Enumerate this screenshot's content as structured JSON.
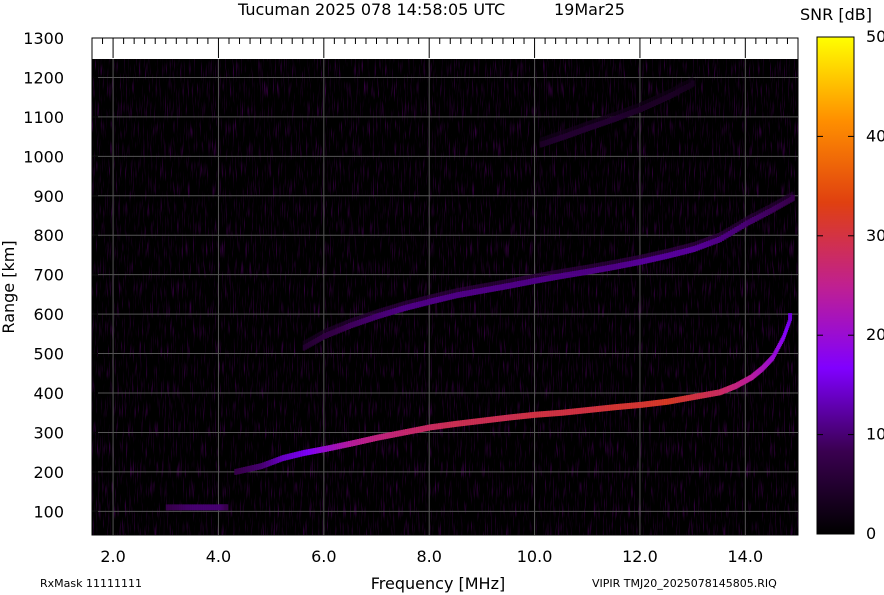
{
  "header": {
    "title": "Tucuman 2025 078 14:58:05 UTC",
    "date": "19Mar25"
  },
  "footer": {
    "rxmask": "RxMask 11111111",
    "filename": "VIPIR  TMJ20_2025078145805.RIQ"
  },
  "colorbar": {
    "label": "SNR [dB]",
    "min": 0,
    "max": 50,
    "ticks": [
      "0",
      "10",
      "20",
      "30",
      "40",
      "50"
    ],
    "colors": [
      "#000000",
      "#3a0050",
      "#8000ff",
      "#c02090",
      "#e04010",
      "#ff9000",
      "#ffff00"
    ]
  },
  "chart_data": {
    "type": "heatmap",
    "title": "Tucuman 2025 078 14:58:05 UTC",
    "xlabel": "Frequency [MHz]",
    "ylabel": "Range [km]",
    "xlim": [
      1.6,
      15.0
    ],
    "ylim": [
      40,
      1300
    ],
    "x_ticks": [
      "2.0",
      "4.0",
      "6.0",
      "8.0",
      "10.0",
      "12.0",
      "14.0"
    ],
    "y_ticks": [
      "100",
      "200",
      "300",
      "400",
      "500",
      "600",
      "700",
      "800",
      "900",
      "1000",
      "1100",
      "1200",
      "1300"
    ],
    "grid": true,
    "colorbar_label": "SNR [dB]",
    "series": [
      {
        "trace": "first-hop E layer",
        "x": [
          3.0,
          3.5,
          4.0,
          4.15
        ],
        "y": [
          110,
          110,
          110,
          110
        ],
        "snr": [
          8,
          10,
          10,
          8
        ]
      },
      {
        "trace": "first-hop F layer",
        "x": [
          4.3,
          4.8,
          5.2,
          5.6,
          6.0,
          6.5,
          7.0,
          7.5,
          8.0,
          8.5,
          9.0,
          9.5,
          10.0,
          10.5,
          11.0,
          11.5,
          12.0,
          12.5,
          13.0,
          13.5,
          13.8,
          14.1,
          14.3,
          14.5,
          14.7,
          14.85
        ],
        "y": [
          200,
          215,
          235,
          248,
          258,
          272,
          287,
          300,
          313,
          322,
          330,
          338,
          345,
          350,
          357,
          364,
          370,
          378,
          390,
          402,
          418,
          440,
          462,
          490,
          540,
          595
        ],
        "snr": [
          8,
          10,
          14,
          16,
          20,
          24,
          26,
          27,
          28,
          29,
          29,
          29,
          30,
          30,
          30,
          31,
          31,
          32,
          30,
          28,
          26,
          24,
          22,
          20,
          18,
          15
        ]
      },
      {
        "trace": "second-hop F layer",
        "x": [
          5.6,
          6.0,
          6.5,
          7.0,
          7.5,
          8.0,
          8.5,
          9.0,
          9.5,
          10.0,
          10.5,
          11.0,
          11.5,
          12.0,
          12.5,
          13.0,
          13.5,
          14.0,
          14.5,
          14.9
        ],
        "y": [
          515,
          545,
          572,
          595,
          615,
          632,
          648,
          660,
          672,
          685,
          697,
          708,
          720,
          733,
          748,
          765,
          790,
          830,
          865,
          895
        ],
        "snr": [
          5,
          7,
          9,
          10,
          11,
          11,
          11,
          11,
          11,
          11,
          11,
          11,
          11,
          12,
          12,
          12,
          11,
          10,
          9,
          8
        ]
      },
      {
        "trace": "third-hop F layer",
        "x": [
          10.1,
          10.5,
          11.0,
          11.5,
          12.0,
          12.5,
          13.0
        ],
        "y": [
          1030,
          1048,
          1072,
          1095,
          1120,
          1150,
          1185
        ],
        "snr": [
          4,
          5,
          5,
          5,
          4,
          4,
          3
        ]
      }
    ]
  }
}
